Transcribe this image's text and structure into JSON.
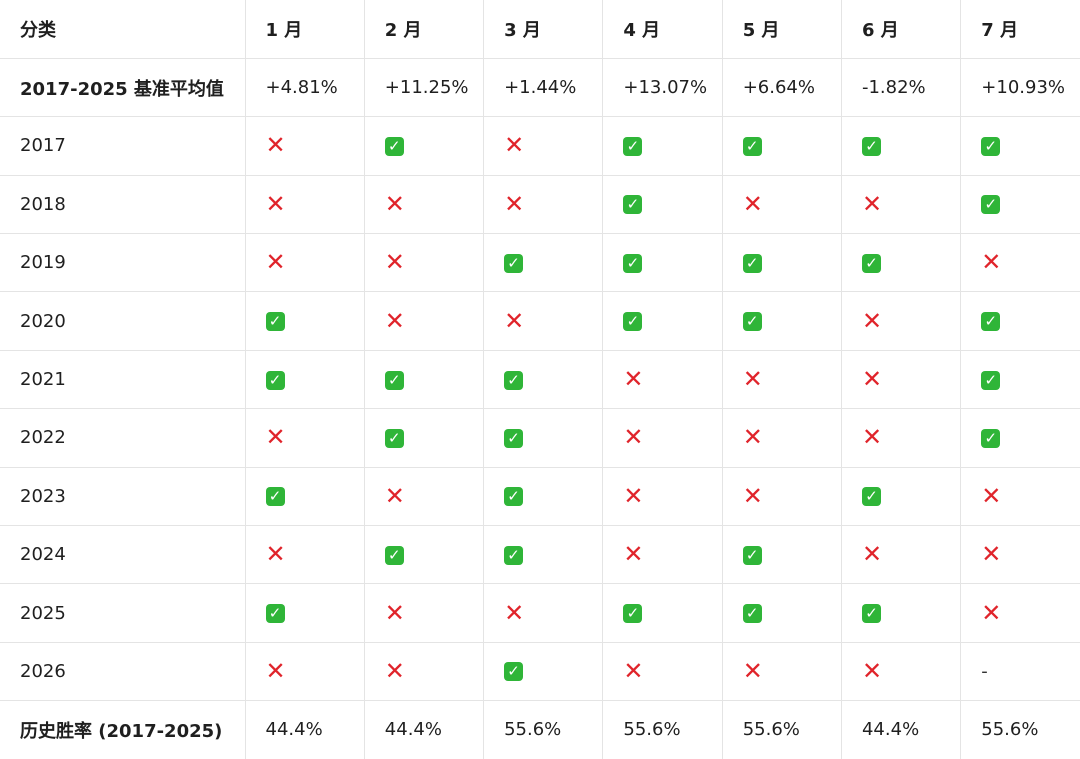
{
  "table": {
    "headers": [
      "分类",
      "1 月",
      "2 月",
      "3 月",
      "4 月",
      "5 月",
      "6 月",
      "7 月"
    ],
    "baseline": {
      "label": "2017-2025 基准平均值",
      "values": [
        "+4.81%",
        "+11.25%",
        "+1.44%",
        "+13.07%",
        "+6.64%",
        "-1.82%",
        "+10.93%"
      ]
    },
    "years": [
      {
        "year": "2017",
        "marks": [
          "cross",
          "check",
          "cross",
          "check",
          "check",
          "check",
          "check"
        ]
      },
      {
        "year": "2018",
        "marks": [
          "cross",
          "cross",
          "cross",
          "check",
          "cross",
          "cross",
          "check"
        ]
      },
      {
        "year": "2019",
        "marks": [
          "cross",
          "cross",
          "check",
          "check",
          "check",
          "check",
          "cross"
        ]
      },
      {
        "year": "2020",
        "marks": [
          "check",
          "cross",
          "cross",
          "check",
          "check",
          "cross",
          "check"
        ]
      },
      {
        "year": "2021",
        "marks": [
          "check",
          "check",
          "check",
          "cross",
          "cross",
          "cross",
          "check"
        ]
      },
      {
        "year": "2022",
        "marks": [
          "cross",
          "check",
          "check",
          "cross",
          "cross",
          "cross",
          "check"
        ]
      },
      {
        "year": "2023",
        "marks": [
          "check",
          "cross",
          "check",
          "cross",
          "cross",
          "check",
          "cross"
        ]
      },
      {
        "year": "2024",
        "marks": [
          "cross",
          "check",
          "check",
          "cross",
          "check",
          "cross",
          "cross"
        ]
      },
      {
        "year": "2025",
        "marks": [
          "check",
          "cross",
          "cross",
          "check",
          "check",
          "check",
          "cross"
        ]
      },
      {
        "year": "2026",
        "marks": [
          "cross",
          "cross",
          "check",
          "cross",
          "cross",
          "cross",
          "dash"
        ]
      }
    ],
    "winrate": {
      "label": "历史胜率 (2017-2025)",
      "values": [
        "44.4%",
        "44.4%",
        "55.6%",
        "55.6%",
        "55.6%",
        "44.4%",
        "55.6%"
      ]
    }
  },
  "icons": {
    "check": "check-mark-icon",
    "cross": "cross-mark-icon",
    "dash": "-"
  },
  "colors": {
    "check_bg": "#2fb538",
    "cross": "#e0242b",
    "grid": "#e4e4e4"
  }
}
